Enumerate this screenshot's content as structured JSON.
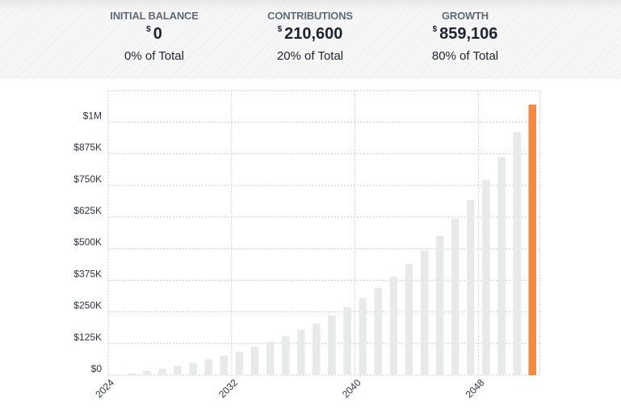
{
  "summary": [
    {
      "label": "INITIAL BALANCE",
      "currency": "$",
      "value": "0",
      "percent": "0% of Total"
    },
    {
      "label": "CONTRIBUTIONS",
      "currency": "$",
      "value": "210,600",
      "percent": "20% of Total"
    },
    {
      "label": "GROWTH",
      "currency": "$",
      "value": "859,106",
      "percent": "80% of Total"
    }
  ],
  "chart_data": {
    "type": "bar",
    "categories": [
      2024,
      2025,
      2026,
      2027,
      2028,
      2029,
      2030,
      2031,
      2032,
      2033,
      2034,
      2035,
      2036,
      2037,
      2038,
      2039,
      2040,
      2041,
      2042,
      2043,
      2044,
      2045,
      2046,
      2047,
      2048,
      2049,
      2050,
      2051
    ],
    "values": [
      0,
      7500,
      16000,
      26000,
      37000,
      49000,
      63000,
      77000,
      93000,
      113000,
      133000,
      154000,
      180000,
      205000,
      236000,
      268000,
      306000,
      345000,
      390000,
      439000,
      493000,
      552000,
      619000,
      692000,
      773000,
      862000,
      961000,
      1069706
    ],
    "ylim": [
      0,
      1125000
    ],
    "yticks": [
      {
        "v": 0,
        "label": "$0"
      },
      {
        "v": 125000,
        "label": "$125K"
      },
      {
        "v": 250000,
        "label": "$250K"
      },
      {
        "v": 375000,
        "label": "$375K"
      },
      {
        "v": 500000,
        "label": "$500K"
      },
      {
        "v": 625000,
        "label": "$625K"
      },
      {
        "v": 750000,
        "label": "$750K"
      },
      {
        "v": 875000,
        "label": "$875K"
      },
      {
        "v": 1000000,
        "label": "$1M"
      }
    ],
    "xticks": [
      "2024",
      "2032",
      "2040",
      "2048"
    ],
    "grid": true,
    "colors": {
      "bar": "#e8eaea",
      "highlight": "#f7873a",
      "grid": "#cccccc"
    },
    "highlight_category": 2051
  }
}
